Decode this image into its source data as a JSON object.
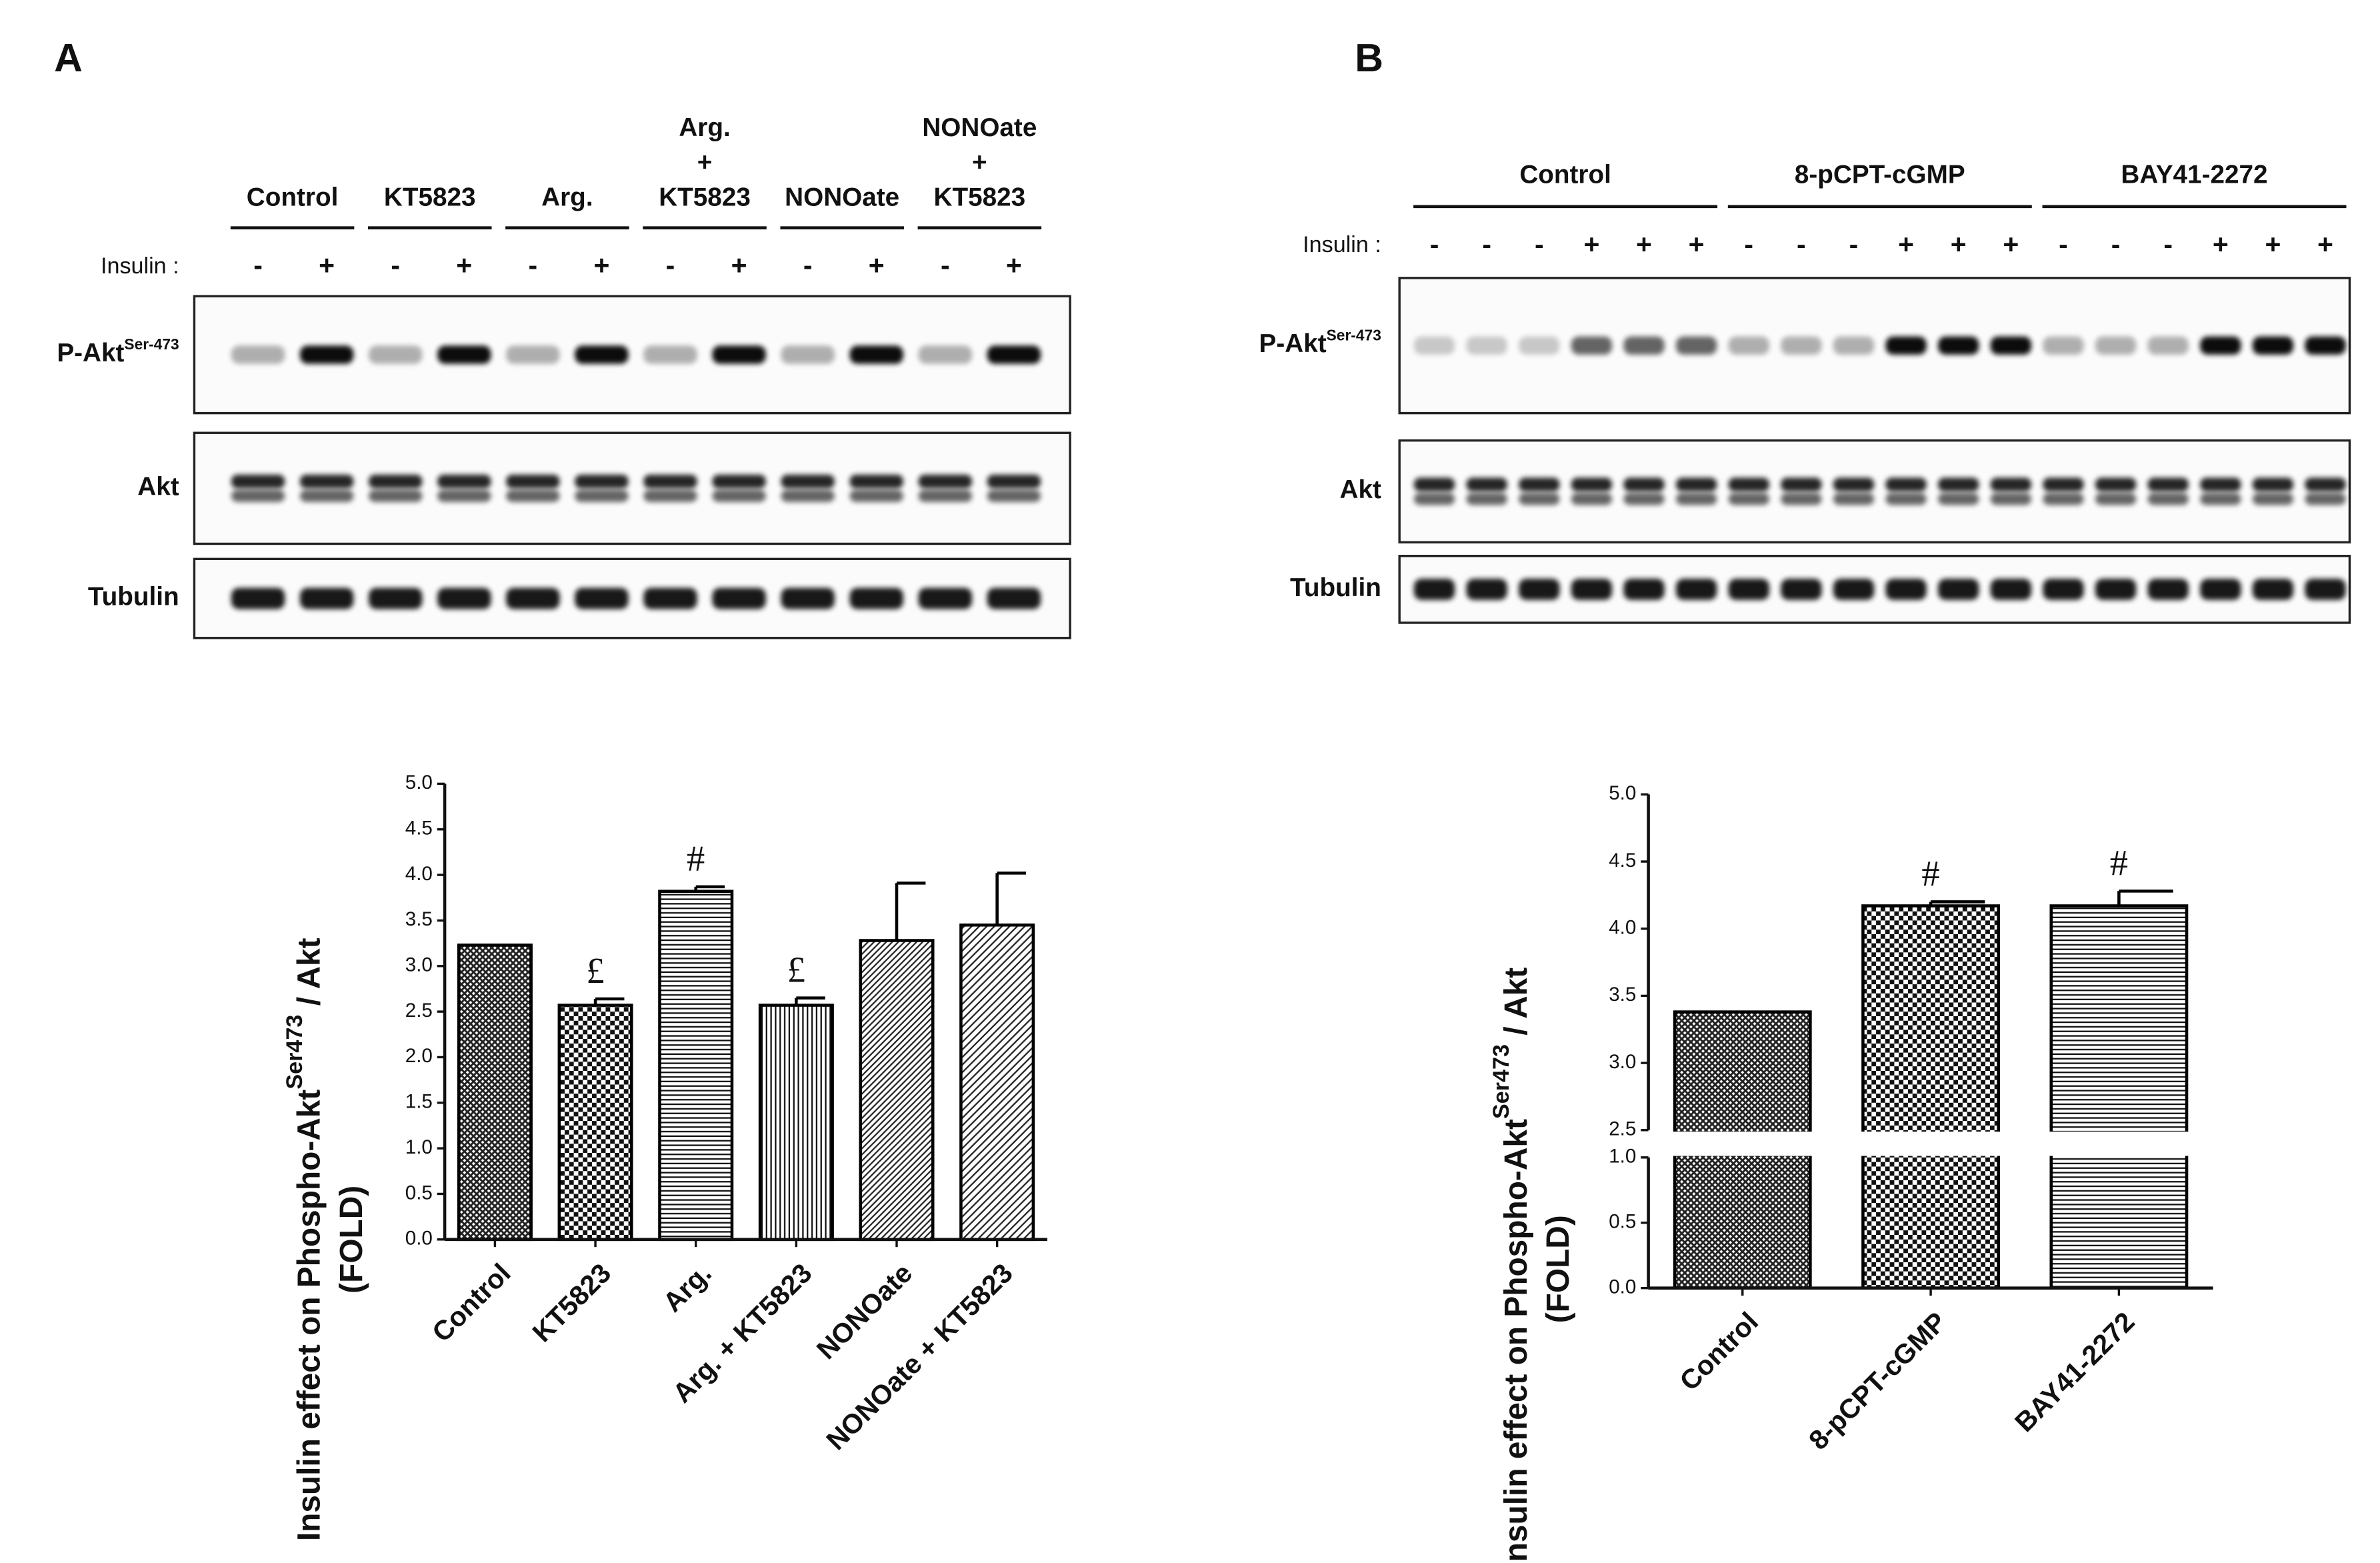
{
  "panels": [
    {
      "letter": "A",
      "insulin_label": "Insulin :",
      "groups": [
        [
          "Control"
        ],
        [
          "KT5823"
        ],
        [
          "Arg."
        ],
        [
          "Arg.",
          "+",
          "KT5823"
        ],
        [
          "NONOate"
        ],
        [
          "NONOate",
          "+",
          "KT5823"
        ]
      ],
      "signs": [
        "-",
        "+",
        "-",
        "+",
        "-",
        "+",
        "-",
        "+",
        "-",
        "+",
        "-",
        "+"
      ],
      "rows": [
        {
          "label": "P-Akt",
          "sup": "Ser-473"
        },
        {
          "label": "Akt"
        },
        {
          "label": "Tubulin"
        }
      ]
    },
    {
      "letter": "B",
      "insulin_label": "Insulin :",
      "groups": [
        [
          "Control"
        ],
        [
          "8-pCPT-cGMP"
        ],
        [
          "BAY41-2272"
        ]
      ],
      "signs": [
        "-",
        "-",
        "-",
        "+",
        "+",
        "+",
        "-",
        "-",
        "-",
        "+",
        "+",
        "+",
        "-",
        "-",
        "-",
        "+",
        "+",
        "+"
      ],
      "rows": [
        {
          "label": "P-Akt",
          "sup": "Ser-473"
        },
        {
          "label": "Akt"
        },
        {
          "label": "Tubulin"
        }
      ]
    }
  ],
  "chart_data": [
    {
      "type": "bar",
      "ylabel": {
        "text": "Insulin effect on Phospho-Akt",
        "sup": "Ser473",
        "suffix": " / Akt",
        "line2": "(FOLD)"
      },
      "categories": [
        "Control",
        "KT5823",
        "Arg.",
        "Arg. + KT5823",
        "NONOate",
        "NONOate + KT5823"
      ],
      "values": [
        3.23,
        2.57,
        3.82,
        2.57,
        3.28,
        3.45
      ],
      "errors": [
        0,
        0.07,
        0.05,
        0.08,
        0.63,
        0.57
      ],
      "patterns": [
        "crosshatch",
        "checker",
        "hlines",
        "vlines",
        "diag",
        "diag2"
      ],
      "color": "#000000",
      "ylim": [
        0,
        5
      ],
      "yticks": [
        {
          "value": 0,
          "label": "0.0"
        },
        0.5,
        {
          "value": 1,
          "label": "1.0"
        },
        1.5,
        {
          "value": 2,
          "label": "2.0"
        },
        2.5,
        {
          "value": 3,
          "label": "3.0"
        },
        3.5,
        {
          "value": 4,
          "label": "4.0"
        },
        4.5,
        {
          "value": 5,
          "label": "5.0"
        }
      ],
      "annotations": [
        {
          "category": "KT5823",
          "text": "£"
        },
        {
          "category": "Arg.",
          "text": "#"
        },
        {
          "category": "Arg. + KT5823",
          "text": "£"
        }
      ]
    },
    {
      "type": "bar",
      "ylabel": {
        "text": "Insulin effect on Phospho-Akt",
        "sup": "Ser473",
        "suffix": " / Akt",
        "line2": "(FOLD)"
      },
      "categories": [
        "Control",
        "8-pCPT-cGMP",
        "BAY41-2272"
      ],
      "values": [
        3.38,
        4.17,
        4.17
      ],
      "errors": [
        0,
        0.03,
        0.11
      ],
      "patterns": [
        "crosshatch",
        "checker",
        "hlines"
      ],
      "color": "#000000",
      "ylim": [
        0,
        5
      ],
      "ybreak": [
        1,
        2.5
      ],
      "yticks": [
        {
          "value": 0,
          "label": "0.0"
        },
        0.5,
        {
          "value": 1,
          "label": "1.0"
        },
        2.5,
        {
          "value": 3,
          "label": "3.0"
        },
        3.5,
        {
          "value": 4,
          "label": "4.0"
        },
        4.5,
        {
          "value": 5,
          "label": "5.0"
        }
      ],
      "annotations": [
        {
          "category": "8-pCPT-cGMP",
          "text": "#"
        },
        {
          "category": "BAY41-2272",
          "text": "#"
        }
      ]
    }
  ]
}
